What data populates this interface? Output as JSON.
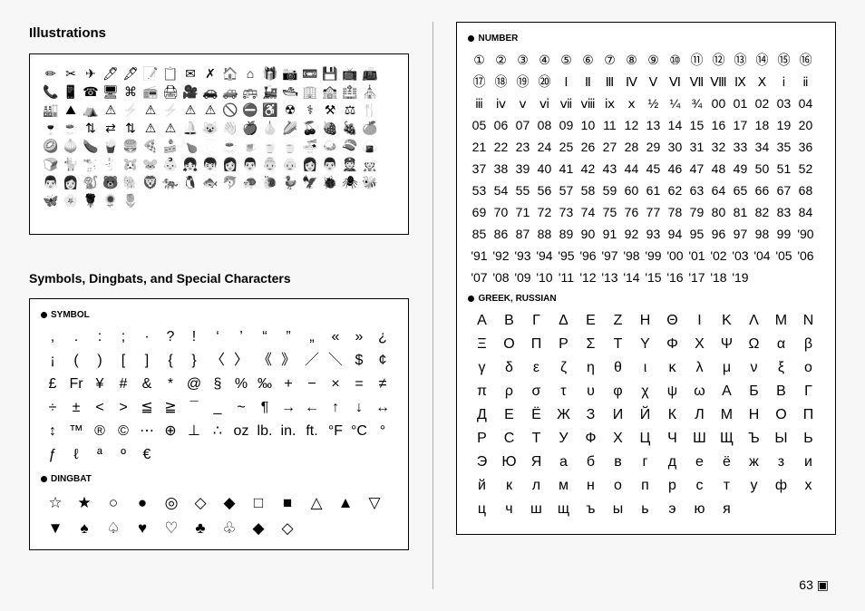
{
  "headings": {
    "illustrations": "Illustrations",
    "symbols": "Symbols, Dingbats, and Special Characters"
  },
  "labels": {
    "symbol": "SYMBOL",
    "dingbat": "DINGBAT",
    "number": "NUMBER",
    "greek": "GREEK, RUSSIAN"
  },
  "footer": {
    "page": "63 ▣"
  },
  "illustrations": [
    "✏",
    "✂",
    "✈",
    "🖊",
    "🖋",
    "📝",
    "📋",
    "✉",
    "✗",
    "🏠",
    "⌂",
    "🎁",
    "📷",
    "📼",
    "💾",
    "📺",
    "📠",
    "📞",
    "📱",
    "☎",
    "🖥",
    "⌘",
    "📻",
    "🖨",
    "🎥",
    "🚗",
    "🚙",
    "🚌",
    "🚂",
    "🛥",
    "🏢",
    "🏫",
    "🏥",
    "⛪",
    "🏭",
    "⛰",
    "⛺",
    "⚠",
    "⚡",
    "⚠",
    "⚡",
    "⚠",
    "⚠",
    "🚫",
    "⛔",
    "♿",
    "☢",
    "⚕",
    "⚒",
    "⚖",
    "🍴",
    "🍷",
    "☕",
    "⇅",
    "⇄",
    "⇅",
    "⚠",
    "⚠",
    "🔔",
    "😺",
    "👋",
    "🍎",
    "🍐",
    "🌽",
    "🍒",
    "🍓",
    "🍇",
    "🍊",
    "🥝",
    "🧅",
    "🍆",
    "🍟",
    "🍔",
    "🍕",
    "🍰",
    "🍗",
    "🥛",
    "☕",
    "🍺",
    "🍵",
    "🍵",
    "🍜",
    "🍛",
    "🍣",
    "🍙",
    "🍞",
    "🐈",
    "🐩",
    "🐇",
    "🐹",
    "🐭",
    "👶",
    "👧",
    "👦",
    "👩",
    "👨",
    "👵",
    "👴",
    "👩",
    "👨",
    "👮",
    "👷",
    "👨",
    "👩",
    "🐒",
    "🐻",
    "🐘",
    "🦁",
    "🐅",
    "🐧",
    "🐟",
    "🐬",
    "🐢",
    "🐌",
    "🦆",
    "🦅",
    "🐞",
    "🕷",
    "🐝",
    "🦋",
    "🌸",
    "🌹",
    "🌻",
    "🌷"
  ],
  "symbols": [
    ",",
    ".",
    ":",
    ";",
    "·",
    "?",
    "!",
    "‘",
    "’",
    "“",
    "”",
    "„",
    "«",
    "»",
    "¿",
    "¡",
    "(",
    ")",
    "[",
    "]",
    "{",
    "}",
    "〈",
    "〉",
    "《",
    "》",
    "／",
    "＼",
    "$",
    "¢",
    "£",
    "Fr",
    "¥",
    "#",
    "&",
    "*",
    "@",
    "§",
    "%",
    "‰",
    "+",
    "−",
    "×",
    "=",
    "≠",
    "÷",
    "±",
    "<",
    ">",
    "≦",
    "≧",
    "¯",
    "_",
    "~",
    "¶",
    "→",
    "←",
    "↑",
    "↓",
    "↔",
    "↕",
    "™",
    "®",
    "©",
    "⋯",
    "⊕",
    "⊥",
    "∴",
    "oz",
    "lb.",
    "in.",
    "ft.",
    "°F",
    "°C",
    "°",
    "ƒ",
    "ℓ",
    "ª",
    "º",
    "€"
  ],
  "dingbats": [
    "☆",
    "★",
    "○",
    "●",
    "◎",
    "◇",
    "◆",
    "□",
    "■",
    "△",
    "▲",
    "▽",
    "▼",
    "♠",
    "♤",
    "♥",
    "♡",
    "♣",
    "♧",
    "◆",
    "◇"
  ],
  "numbers": [
    "①",
    "②",
    "③",
    "④",
    "⑤",
    "⑥",
    "⑦",
    "⑧",
    "⑨",
    "⑩",
    "⑪",
    "⑫",
    "⑬",
    "⑭",
    "⑮",
    "⑯",
    "⑰",
    "⑱",
    "⑲",
    "⑳",
    "Ⅰ",
    "Ⅱ",
    "Ⅲ",
    "Ⅳ",
    "Ⅴ",
    "Ⅵ",
    "Ⅶ",
    "Ⅷ",
    "Ⅸ",
    "Ⅹ",
    "ⅰ",
    "ⅱ",
    "ⅲ",
    "ⅳ",
    "ⅴ",
    "ⅵ",
    "ⅶ",
    "ⅷ",
    "ⅸ",
    "ⅹ",
    "½",
    "¼",
    "¾",
    "00",
    "01",
    "02",
    "03",
    "04",
    "05",
    "06",
    "07",
    "08",
    "09",
    "10",
    "11",
    "12",
    "13",
    "14",
    "15",
    "16",
    "17",
    "18",
    "19",
    "20",
    "21",
    "22",
    "23",
    "24",
    "25",
    "26",
    "27",
    "28",
    "29",
    "30",
    "31",
    "32",
    "33",
    "34",
    "35",
    "36",
    "37",
    "38",
    "39",
    "40",
    "41",
    "42",
    "43",
    "44",
    "45",
    "46",
    "47",
    "48",
    "49",
    "50",
    "51",
    "52",
    "53",
    "54",
    "55",
    "56",
    "57",
    "58",
    "59",
    "60",
    "61",
    "62",
    "63",
    "64",
    "65",
    "66",
    "67",
    "68",
    "69",
    "70",
    "71",
    "72",
    "73",
    "74",
    "75",
    "76",
    "77",
    "78",
    "79",
    "80",
    "81",
    "82",
    "83",
    "84",
    "85",
    "86",
    "87",
    "88",
    "89",
    "90",
    "91",
    "92",
    "93",
    "94",
    "95",
    "96",
    "97",
    "98",
    "99",
    "'90",
    "'91",
    "'92",
    "'93",
    "'94",
    "'95",
    "'96",
    "'97",
    "'98",
    "'99",
    "'00",
    "'01",
    "'02",
    "'03",
    "'04",
    "'05",
    "'06",
    "'07",
    "'08",
    "'09",
    "'10",
    "'11",
    "'12",
    "'13",
    "'14",
    "'15",
    "'16",
    "'17",
    "'18",
    "'19"
  ],
  "greek_russian": [
    "Α",
    "Β",
    "Γ",
    "Δ",
    "Ε",
    "Ζ",
    "Η",
    "Θ",
    "Ι",
    "Κ",
    "Λ",
    "Μ",
    "Ν",
    "Ξ",
    "Ο",
    "Π",
    "Ρ",
    "Σ",
    "Τ",
    "Υ",
    "Φ",
    "Χ",
    "Ψ",
    "Ω",
    "α",
    "β",
    "γ",
    "δ",
    "ε",
    "ζ",
    "η",
    "θ",
    "ι",
    "κ",
    "λ",
    "μ",
    "ν",
    "ξ",
    "ο",
    "π",
    "ρ",
    "σ",
    "τ",
    "υ",
    "φ",
    "χ",
    "ψ",
    "ω",
    "А",
    "Б",
    "В",
    "Г",
    "Д",
    "Е",
    "Ё",
    "Ж",
    "З",
    "И",
    "Й",
    "К",
    "Л",
    "М",
    "Н",
    "О",
    "П",
    "Р",
    "С",
    "Т",
    "У",
    "Ф",
    "Х",
    "Ц",
    "Ч",
    "Ш",
    "Щ",
    "Ъ",
    "Ы",
    "Ь",
    "Э",
    "Ю",
    "Я",
    "а",
    "б",
    "в",
    "г",
    "д",
    "е",
    "ё",
    "ж",
    "з",
    "и",
    "й",
    "к",
    "л",
    "м",
    "н",
    "о",
    "п",
    "р",
    "с",
    "т",
    "у",
    "ф",
    "х",
    "ц",
    "ч",
    "ш",
    "щ",
    "ъ",
    "ы",
    "ь",
    "э",
    "ю",
    "я"
  ]
}
